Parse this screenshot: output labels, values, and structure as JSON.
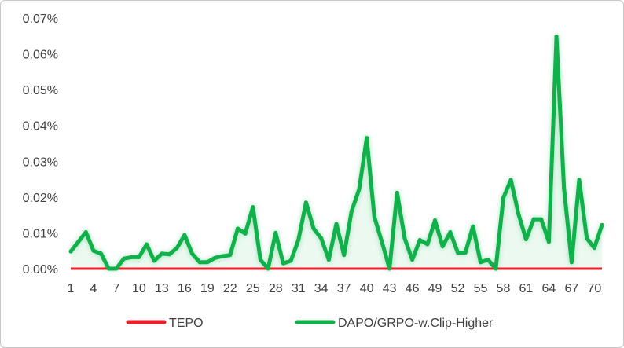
{
  "chart_data": {
    "type": "line",
    "title": "",
    "xlabel": "",
    "ylabel": "",
    "x_tick_labels": [
      "1",
      "4",
      "7",
      "10",
      "13",
      "16",
      "19",
      "22",
      "25",
      "28",
      "31",
      "34",
      "37",
      "40",
      "43",
      "46",
      "49",
      "52",
      "55",
      "58",
      "61",
      "64",
      "67",
      "70"
    ],
    "y_tick_labels": [
      "0.00%",
      "0.01%",
      "0.02%",
      "0.03%",
      "0.04%",
      "0.05%",
      "0.06%",
      "0.07%"
    ],
    "ylim": [
      0,
      0.07
    ],
    "xlim": [
      1,
      71
    ],
    "grid": false,
    "legend_position": "bottom",
    "series": [
      {
        "name": "TEPO",
        "color": "#e8212b",
        "values": [
          0,
          0,
          0,
          0,
          0,
          0,
          0,
          0,
          0,
          0,
          0,
          0,
          0,
          0,
          0,
          0,
          0,
          0,
          0,
          0,
          0,
          0,
          0,
          0,
          0,
          0,
          0,
          0,
          0,
          0,
          0,
          0,
          0,
          0,
          0,
          0,
          0,
          0,
          0,
          0,
          0,
          0,
          0,
          0,
          0,
          0,
          0,
          0,
          0,
          0,
          0,
          0,
          0,
          0,
          0,
          0,
          0,
          0,
          0,
          0,
          0,
          0,
          0,
          0,
          0,
          0,
          0,
          0,
          0,
          0,
          0
        ]
      },
      {
        "name": "DAPO/GRPO-w.Clip-Higher",
        "color": "#10b04a",
        "values": [
          0.0048,
          0.0075,
          0.0102,
          0.005,
          0.0042,
          0,
          0,
          0.0028,
          0.0032,
          0.0032,
          0.0068,
          0.0022,
          0.0042,
          0.004,
          0.0058,
          0.0094,
          0.0042,
          0.0018,
          0.0018,
          0.003,
          0.0035,
          0.0038,
          0.0112,
          0.0098,
          0.0172,
          0.0025,
          0,
          0.01,
          0.0015,
          0.0022,
          0.008,
          0.0185,
          0.0112,
          0.0085,
          0.0025,
          0.0125,
          0.0038,
          0.016,
          0.0222,
          0.0365,
          0.0145,
          0.0075,
          0,
          0.0212,
          0.0085,
          0.0025,
          0.008,
          0.0068,
          0.0135,
          0.0062,
          0.0102,
          0.0045,
          0.0045,
          0.0118,
          0.0018,
          0.0025,
          0,
          0.0198,
          0.0248,
          0.0152,
          0.0082,
          0.0138,
          0.0138,
          0.0075,
          0.0648,
          0.0225,
          0.0018,
          0.0248,
          0.0085,
          0.0058,
          0.0122
        ]
      }
    ]
  }
}
